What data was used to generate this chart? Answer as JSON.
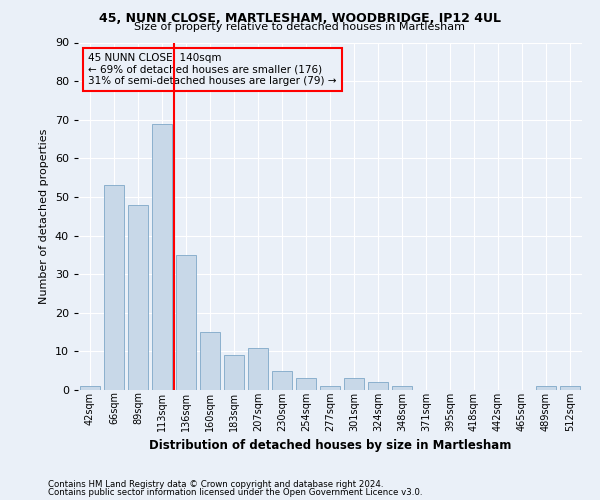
{
  "title1": "45, NUNN CLOSE, MARTLESHAM, WOODBRIDGE, IP12 4UL",
  "title2": "Size of property relative to detached houses in Martlesham",
  "xlabel": "Distribution of detached houses by size in Martlesham",
  "ylabel": "Number of detached properties",
  "bar_labels": [
    "42sqm",
    "66sqm",
    "89sqm",
    "113sqm",
    "136sqm",
    "160sqm",
    "183sqm",
    "207sqm",
    "230sqm",
    "254sqm",
    "277sqm",
    "301sqm",
    "324sqm",
    "348sqm",
    "371sqm",
    "395sqm",
    "418sqm",
    "442sqm",
    "465sqm",
    "489sqm",
    "512sqm"
  ],
  "bar_values": [
    1,
    53,
    48,
    69,
    35,
    15,
    9,
    11,
    5,
    3,
    1,
    3,
    2,
    1,
    0,
    0,
    0,
    0,
    0,
    1,
    1
  ],
  "bar_color": "#c8d8e8",
  "bar_edgecolor": "#7fa8c8",
  "highlight_index": 4,
  "property_label": "45 NUNN CLOSE: 140sqm",
  "annotation_line1": "← 69% of detached houses are smaller (176)",
  "annotation_line2": "31% of semi-detached houses are larger (79) →",
  "ylim": [
    0,
    90
  ],
  "yticks": [
    0,
    10,
    20,
    30,
    40,
    50,
    60,
    70,
    80,
    90
  ],
  "bg_color": "#eaf0f8",
  "grid_color": "#ffffff",
  "footer1": "Contains HM Land Registry data © Crown copyright and database right 2024.",
  "footer2": "Contains public sector information licensed under the Open Government Licence v3.0."
}
